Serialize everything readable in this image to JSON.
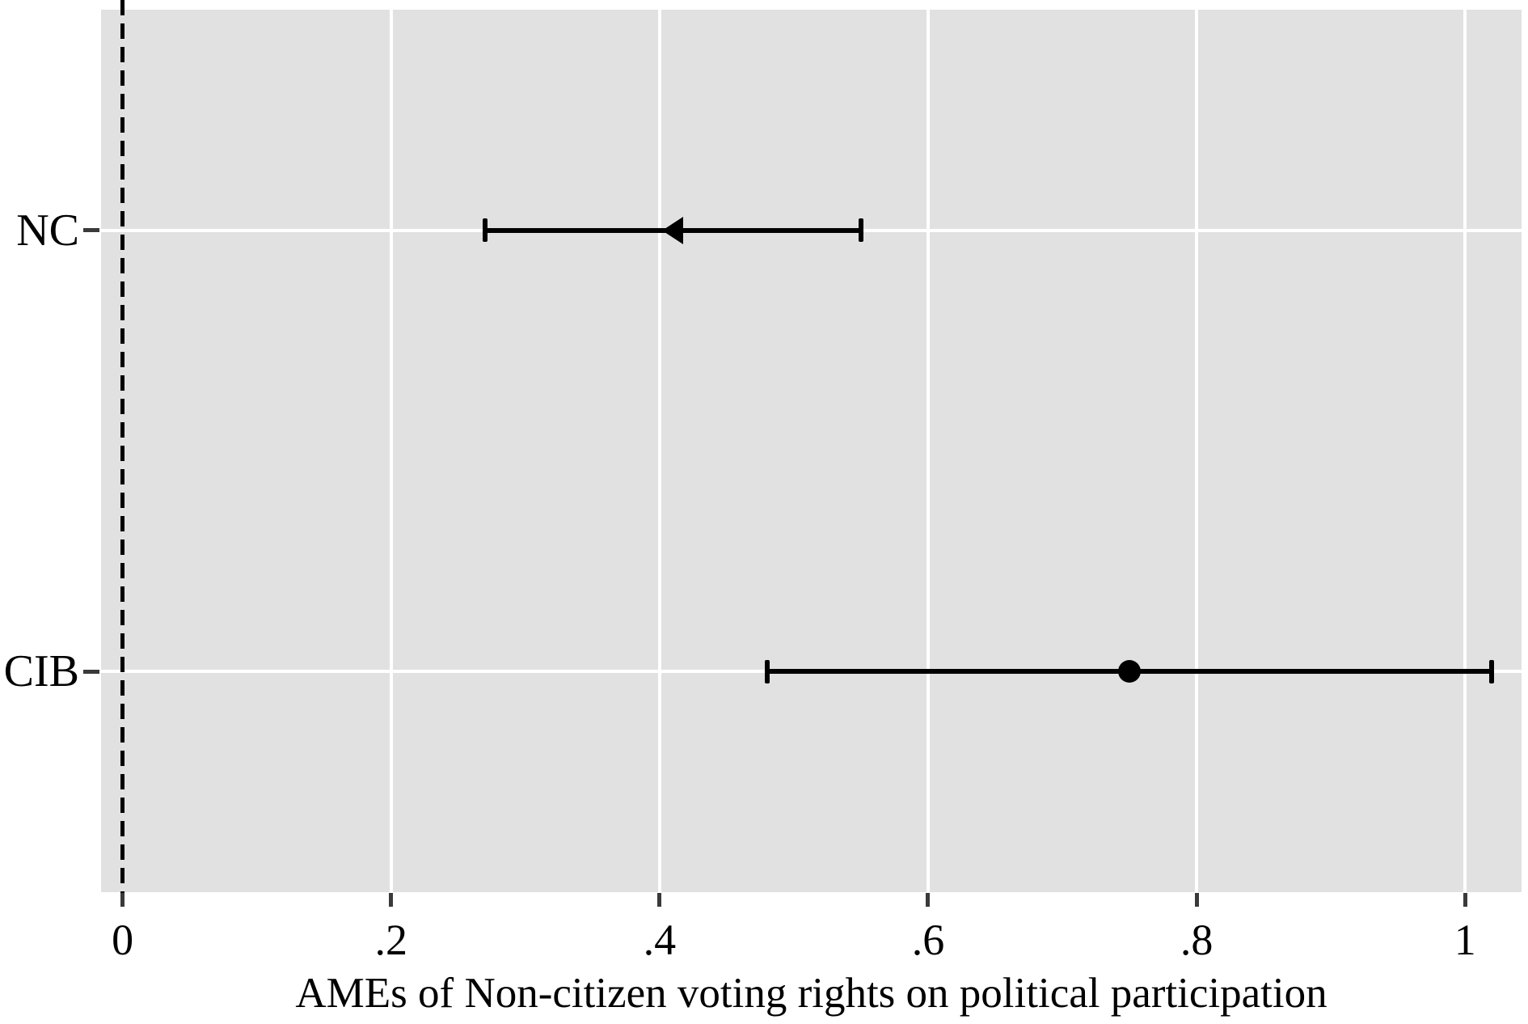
{
  "chart_data": {
    "type": "scatter",
    "subtype": "horizontal-coefficient-plot-with-confidence-intervals",
    "title": "",
    "xlabel": "AMEs of Non-citizen voting rights on political participation",
    "ylabel": "",
    "categories": [
      "NC",
      "CIB"
    ],
    "series": [
      {
        "name": "NC",
        "marker": "triangle-left",
        "estimate": 0.41,
        "ci_low": 0.27,
        "ci_high": 0.55
      },
      {
        "name": "CIB",
        "marker": "circle",
        "estimate": 0.75,
        "ci_low": 0.48,
        "ci_high": 1.02
      }
    ],
    "x_ticks": [
      {
        "value": 0,
        "label": "0"
      },
      {
        "value": 0.2,
        "label": ".2"
      },
      {
        "value": 0.4,
        "label": ".4"
      },
      {
        "value": 0.6,
        "label": ".6"
      },
      {
        "value": 0.8,
        "label": ".8"
      },
      {
        "value": 1,
        "label": "1"
      }
    ],
    "xlim": [
      -0.016,
      1.042
    ],
    "reference_line": {
      "value": 0,
      "style": "dashed",
      "color": "#000000"
    },
    "grid": {
      "vertical_at": [
        0.2,
        0.4,
        0.6,
        0.8,
        1.0
      ],
      "horizontal": "one line per category row",
      "color": "#ffffff"
    },
    "legend": "none",
    "colors": {
      "page_background": "#ffffff",
      "plot_background": "#e1e1e1",
      "grid": "#ffffff",
      "data": "#000000",
      "axis_text": "#000000",
      "tick_marks": "#3a3a3a"
    }
  }
}
